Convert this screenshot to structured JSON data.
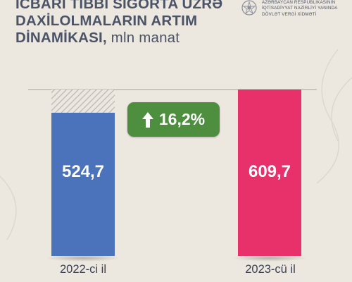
{
  "header": {
    "title_lines": [
      "İCBARİ TİBBİ SIĞORTA ÜZRƏ",
      "DAXİLOLMALARIN ARTIM",
      "DİNAMİKASI,"
    ],
    "title_unit": "mln manat",
    "org_lines": [
      "AZƏRBAYCAN RESPUBLİKASININ",
      "İQTİSADİYYAT NAZİRLİYİ YANINDA",
      "DÖVLƏT VERGİ XİDMƏTİ"
    ]
  },
  "growth": {
    "label": "16,2%",
    "icon": "arrow-up-icon",
    "color": "#4e8e3f"
  },
  "colors": {
    "bar_2022": "#4a73bb",
    "bar_2023": "#e8306a",
    "background": "#ece7df"
  },
  "chart_data": {
    "type": "bar",
    "categories": [
      "2022-ci il",
      "2023-cü il"
    ],
    "values": [
      524.7,
      609.7
    ],
    "value_labels": [
      "524,7",
      "609,7"
    ],
    "title": "İCBARİ TİBBİ SIĞORTA ÜZRƏ DAXİLOLMALARIN ARTIM DİNAMİKASI, mln manat",
    "xlabel": "",
    "ylabel": "",
    "ylim": [
      0,
      609.7
    ],
    "grid": false,
    "legend": "none"
  }
}
